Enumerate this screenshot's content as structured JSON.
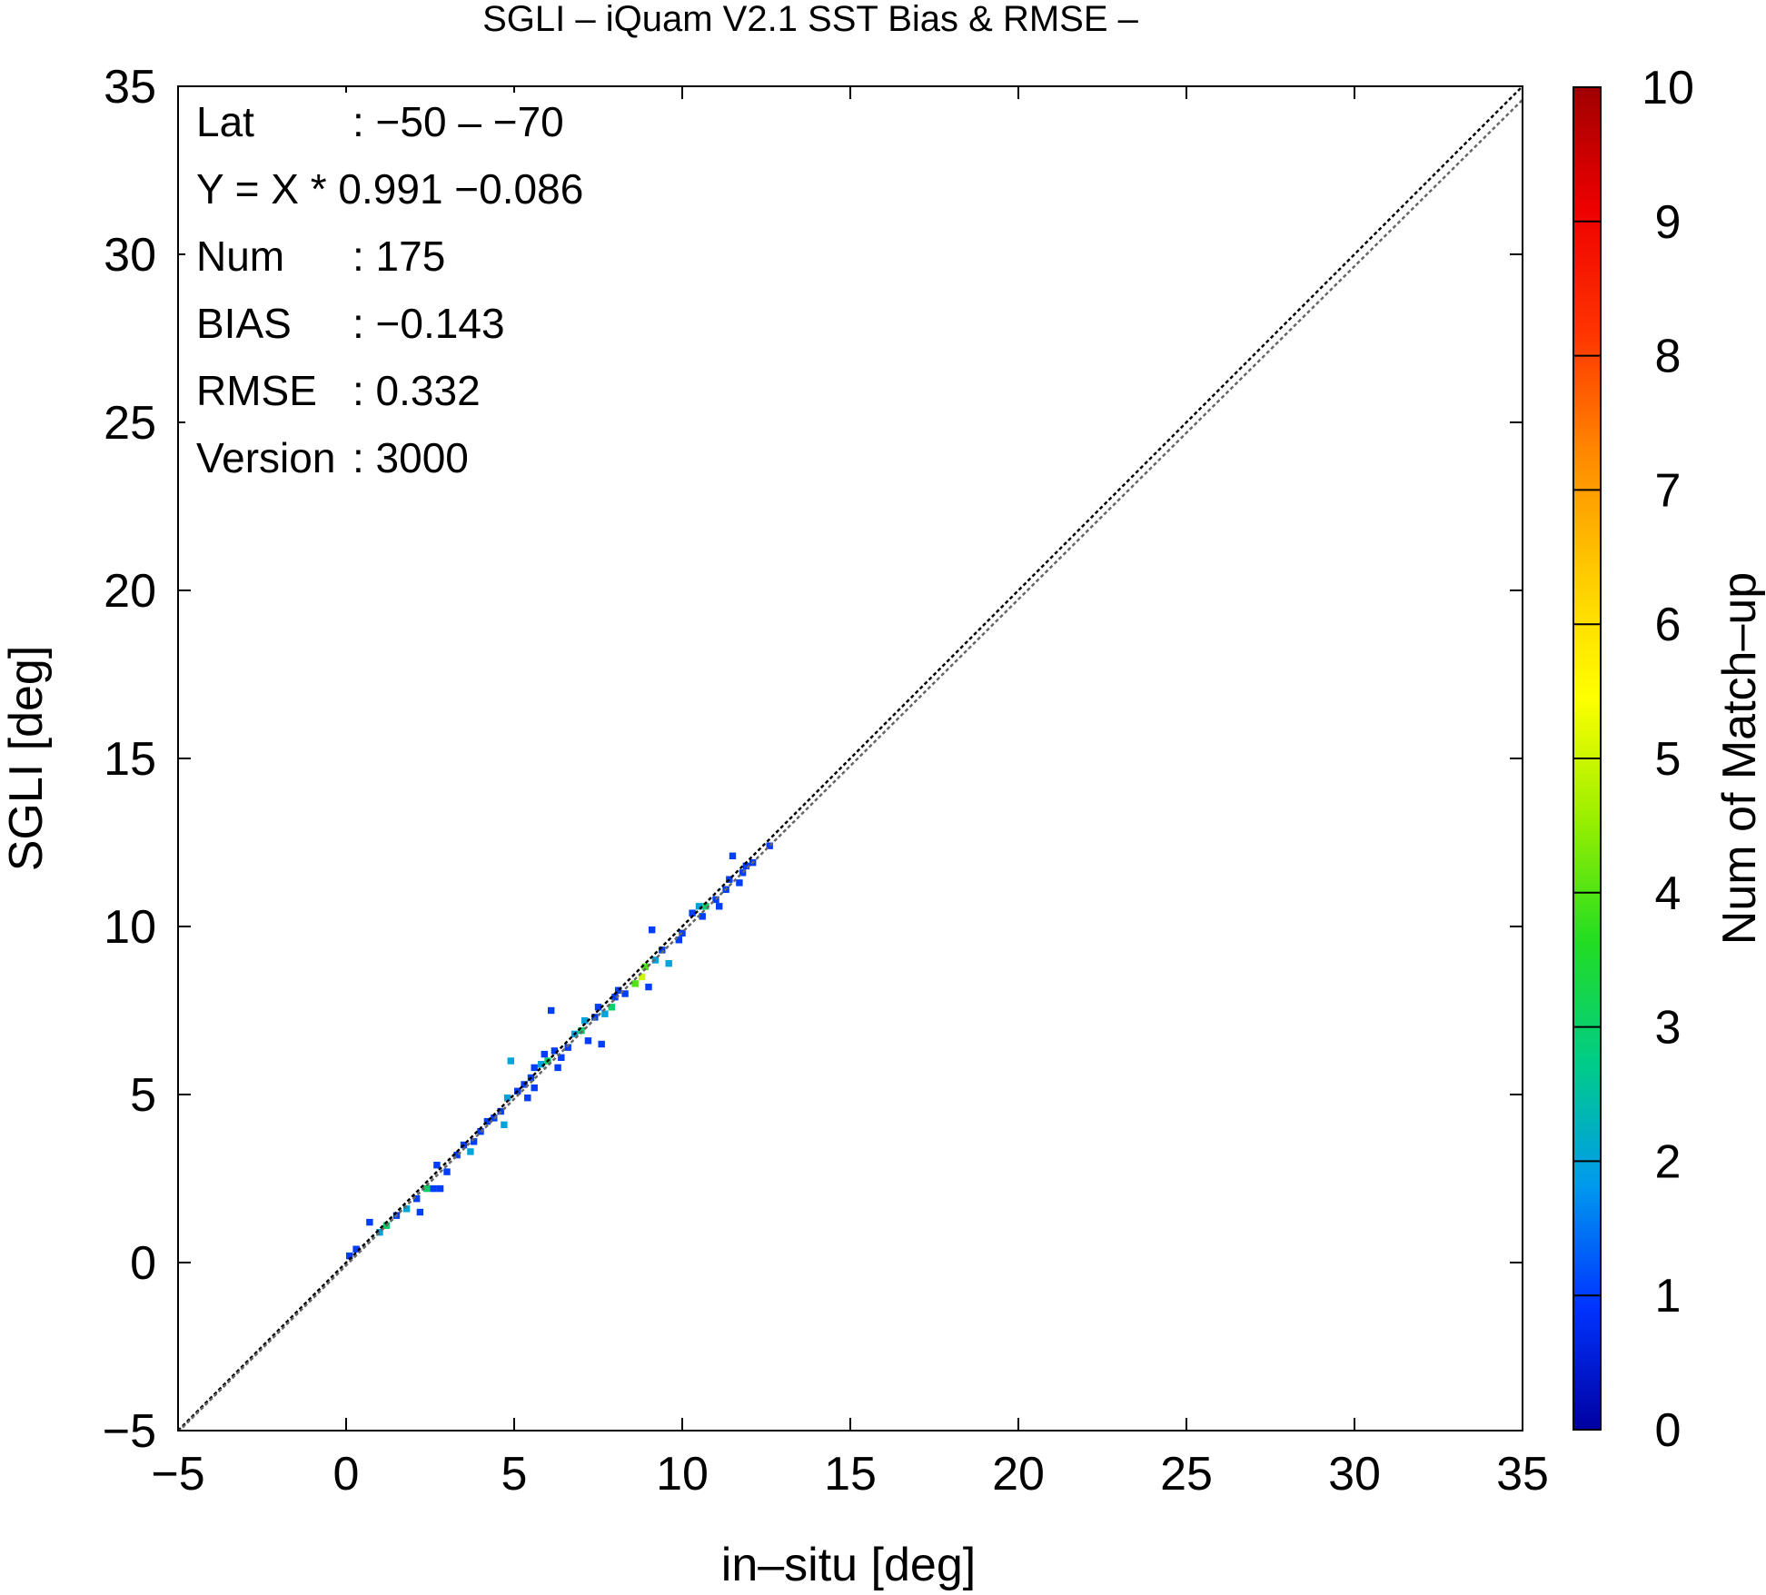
{
  "chart_data": {
    "type": "heatmap",
    "title": "SGLI – iQuam V2.1 SST Bias & RMSE  –",
    "xlabel": "in–situ [deg]",
    "ylabel": "SGLI [deg]",
    "xlim": [
      -5,
      35
    ],
    "ylim": [
      -5,
      35
    ],
    "xticks": [
      "−5",
      "0",
      "5",
      "10",
      "15",
      "20",
      "25",
      "30",
      "35"
    ],
    "yticks": [
      "−5",
      "0",
      "5",
      "10",
      "15",
      "20",
      "25",
      "30",
      "35"
    ],
    "grid": false,
    "colorbar": {
      "label": "Num of Match–up",
      "range": [
        0,
        10
      ],
      "ticks": [
        "0",
        "1",
        "2",
        "3",
        "4",
        "5",
        "6",
        "7",
        "8",
        "9",
        "10"
      ],
      "colors": [
        "#0000a0",
        "#0033ff",
        "#0099ee",
        "#00cc88",
        "#22dd22",
        "#99ee00",
        "#ffff00",
        "#ffcc00",
        "#ff8800",
        "#ff3300",
        "#ee0000",
        "#a00000"
      ]
    },
    "lines": [
      {
        "kind": "one-to-one",
        "slope": 1,
        "intercept": 0,
        "color": "#000000",
        "style": "dotted"
      },
      {
        "kind": "regression",
        "slope": 0.991,
        "intercept": -0.086,
        "color": "#666666",
        "style": "dotted"
      }
    ],
    "stats": [
      {
        "label": "Lat",
        "value": ": −50 – −70"
      },
      {
        "label": "Y = X * 0.991 −0.086",
        "value": ""
      },
      {
        "label": "Num",
        "value": ": 175"
      },
      {
        "label": "BIAS",
        "value": ": −0.143"
      },
      {
        "label": "RMSE",
        "value": ": 0.332"
      },
      {
        "label": "Version",
        "value": ": 3000"
      }
    ],
    "points": [
      {
        "x": 0.1,
        "y": 0.2,
        "c": 1
      },
      {
        "x": 0.3,
        "y": 0.4,
        "c": 1
      },
      {
        "x": 0.7,
        "y": 1.2,
        "c": 1
      },
      {
        "x": 1.0,
        "y": 0.9,
        "c": 2
      },
      {
        "x": 1.2,
        "y": 1.1,
        "c": 3
      },
      {
        "x": 1.5,
        "y": 1.4,
        "c": 1
      },
      {
        "x": 1.8,
        "y": 1.6,
        "c": 2
      },
      {
        "x": 2.1,
        "y": 1.9,
        "c": 1
      },
      {
        "x": 2.2,
        "y": 1.5,
        "c": 1
      },
      {
        "x": 2.4,
        "y": 2.2,
        "c": 3
      },
      {
        "x": 2.6,
        "y": 2.2,
        "c": 1
      },
      {
        "x": 2.8,
        "y": 2.2,
        "c": 1
      },
      {
        "x": 2.7,
        "y": 2.9,
        "c": 1
      },
      {
        "x": 3.0,
        "y": 2.7,
        "c": 1
      },
      {
        "x": 3.3,
        "y": 3.2,
        "c": 1
      },
      {
        "x": 3.5,
        "y": 3.5,
        "c": 1
      },
      {
        "x": 3.7,
        "y": 3.3,
        "c": 2
      },
      {
        "x": 3.8,
        "y": 3.6,
        "c": 1
      },
      {
        "x": 4.0,
        "y": 3.9,
        "c": 1
      },
      {
        "x": 4.2,
        "y": 4.2,
        "c": 1
      },
      {
        "x": 4.4,
        "y": 4.3,
        "c": 1
      },
      {
        "x": 4.6,
        "y": 4.5,
        "c": 1
      },
      {
        "x": 4.7,
        "y": 4.1,
        "c": 2
      },
      {
        "x": 4.8,
        "y": 4.9,
        "c": 2
      },
      {
        "x": 4.9,
        "y": 6.0,
        "c": 2
      },
      {
        "x": 5.1,
        "y": 5.1,
        "c": 1
      },
      {
        "x": 5.3,
        "y": 5.3,
        "c": 1
      },
      {
        "x": 5.4,
        "y": 4.9,
        "c": 1
      },
      {
        "x": 5.5,
        "y": 5.5,
        "c": 1
      },
      {
        "x": 5.6,
        "y": 5.2,
        "c": 1
      },
      {
        "x": 5.6,
        "y": 5.8,
        "c": 1
      },
      {
        "x": 5.8,
        "y": 5.9,
        "c": 2
      },
      {
        "x": 5.9,
        "y": 6.2,
        "c": 1
      },
      {
        "x": 6.0,
        "y": 6.0,
        "c": 3
      },
      {
        "x": 6.1,
        "y": 7.5,
        "c": 1
      },
      {
        "x": 6.2,
        "y": 6.3,
        "c": 1
      },
      {
        "x": 6.3,
        "y": 5.8,
        "c": 1
      },
      {
        "x": 6.4,
        "y": 6.1,
        "c": 1
      },
      {
        "x": 6.6,
        "y": 6.4,
        "c": 1
      },
      {
        "x": 6.8,
        "y": 6.8,
        "c": 2
      },
      {
        "x": 7.0,
        "y": 6.9,
        "c": 3
      },
      {
        "x": 7.1,
        "y": 7.2,
        "c": 2
      },
      {
        "x": 7.2,
        "y": 6.6,
        "c": 1
      },
      {
        "x": 7.4,
        "y": 7.3,
        "c": 1
      },
      {
        "x": 7.5,
        "y": 7.6,
        "c": 1
      },
      {
        "x": 7.6,
        "y": 6.5,
        "c": 1
      },
      {
        "x": 7.7,
        "y": 7.4,
        "c": 2
      },
      {
        "x": 7.9,
        "y": 7.6,
        "c": 3
      },
      {
        "x": 8.0,
        "y": 7.9,
        "c": 1
      },
      {
        "x": 8.1,
        "y": 8.1,
        "c": 1
      },
      {
        "x": 8.3,
        "y": 8.0,
        "c": 1
      },
      {
        "x": 8.6,
        "y": 8.3,
        "c": 4
      },
      {
        "x": 8.8,
        "y": 8.5,
        "c": 5
      },
      {
        "x": 8.9,
        "y": 8.8,
        "c": 4
      },
      {
        "x": 9.0,
        "y": 8.2,
        "c": 1
      },
      {
        "x": 9.1,
        "y": 9.9,
        "c": 1
      },
      {
        "x": 9.2,
        "y": 9.0,
        "c": 2
      },
      {
        "x": 9.4,
        "y": 9.3,
        "c": 1
      },
      {
        "x": 9.6,
        "y": 8.9,
        "c": 2
      },
      {
        "x": 9.9,
        "y": 9.6,
        "c": 1
      },
      {
        "x": 10.0,
        "y": 9.8,
        "c": 1
      },
      {
        "x": 10.3,
        "y": 10.4,
        "c": 1
      },
      {
        "x": 10.5,
        "y": 10.6,
        "c": 2
      },
      {
        "x": 10.6,
        "y": 10.3,
        "c": 1
      },
      {
        "x": 10.7,
        "y": 10.6,
        "c": 3
      },
      {
        "x": 11.0,
        "y": 10.8,
        "c": 1
      },
      {
        "x": 11.1,
        "y": 10.6,
        "c": 1
      },
      {
        "x": 11.3,
        "y": 11.1,
        "c": 1
      },
      {
        "x": 11.4,
        "y": 11.4,
        "c": 1
      },
      {
        "x": 11.5,
        "y": 12.1,
        "c": 1
      },
      {
        "x": 11.7,
        "y": 11.3,
        "c": 1
      },
      {
        "x": 11.8,
        "y": 11.6,
        "c": 1
      },
      {
        "x": 11.9,
        "y": 11.8,
        "c": 1
      },
      {
        "x": 12.1,
        "y": 11.9,
        "c": 1
      },
      {
        "x": 12.6,
        "y": 12.4,
        "c": 1
      }
    ]
  }
}
